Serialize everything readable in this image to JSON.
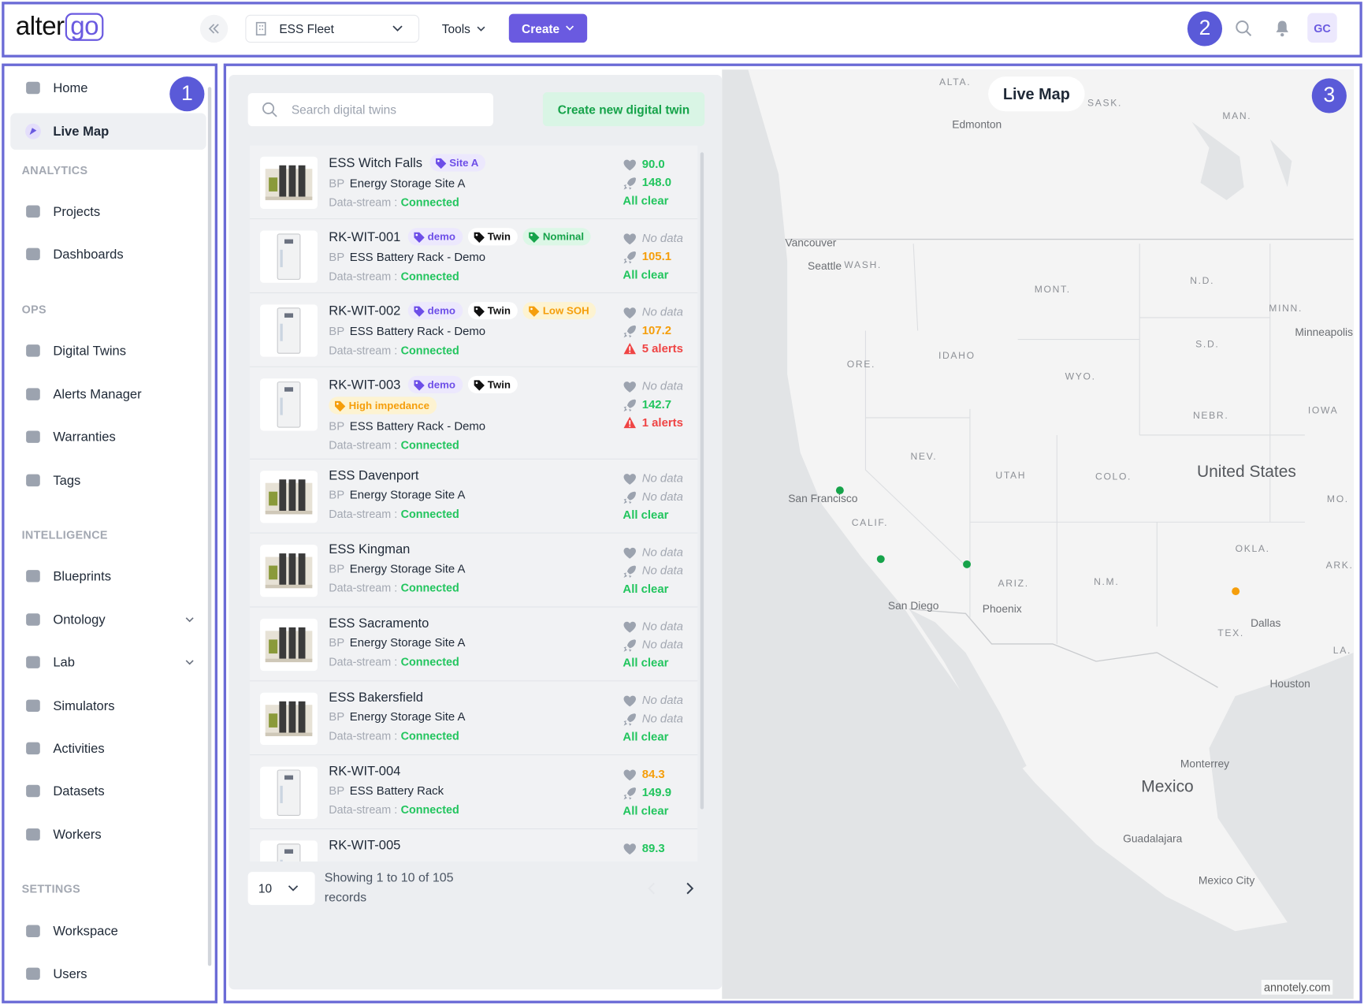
{
  "header": {
    "logo": {
      "text": "alter",
      "accent": "go"
    },
    "badge": "2",
    "fleet_selector": "ESS Fleet",
    "tools": "Tools",
    "create": "Create",
    "avatar": "GC"
  },
  "sidebar": {
    "badge": "1",
    "sections": [
      {
        "items": [
          {
            "label": "Home"
          },
          {
            "label": "Live Map",
            "active": true
          }
        ]
      },
      {
        "title": "ANALYTICS",
        "items": [
          {
            "label": "Projects"
          },
          {
            "label": "Dashboards"
          }
        ]
      },
      {
        "title": "OPS",
        "items": [
          {
            "label": "Digital Twins"
          },
          {
            "label": "Alerts Manager"
          },
          {
            "label": "Warranties"
          },
          {
            "label": "Tags"
          }
        ]
      },
      {
        "title": "INTELLIGENCE",
        "items": [
          {
            "label": "Blueprints"
          },
          {
            "label": "Ontology",
            "submenu": true
          },
          {
            "label": "Lab",
            "submenu": true
          },
          {
            "label": "Simulators"
          },
          {
            "label": "Activities"
          },
          {
            "label": "Datasets"
          },
          {
            "label": "Workers"
          }
        ]
      },
      {
        "title": "SETTINGS",
        "items": [
          {
            "label": "Workspace"
          },
          {
            "label": "Users"
          }
        ]
      }
    ]
  },
  "main": {
    "badge": "3",
    "map_title": "Live Map",
    "search_placeholder": "Search digital twins",
    "create_button": "Create new digital twin",
    "stream_label": "Data-stream :",
    "twins": [
      {
        "name": "ESS Witch Falls",
        "image": "site",
        "tags": [
          {
            "label": "Site A",
            "tone": "purple"
          }
        ],
        "kind": "BP",
        "site": "Energy Storage Site A",
        "stream": "Connected",
        "health": {
          "text": "90.0",
          "tone": "ok"
        },
        "power": {
          "text": "148.0",
          "tone": "ok"
        },
        "status": {
          "text": "All clear",
          "tone": "ok"
        }
      },
      {
        "name": "RK-WIT-001",
        "image": "rack",
        "tags": [
          {
            "label": "demo",
            "tone": "purple"
          },
          {
            "label": "Twin",
            "tone": "dark"
          },
          {
            "label": "Nominal",
            "tone": "green"
          }
        ],
        "kind": "BP",
        "site": "ESS Battery Rack - Demo",
        "stream": "Connected",
        "health": {
          "text": "No data",
          "tone": "none"
        },
        "power": {
          "text": "105.1",
          "tone": "warn"
        },
        "status": {
          "text": "All clear",
          "tone": "ok"
        }
      },
      {
        "name": "RK-WIT-002",
        "image": "rack",
        "tags": [
          {
            "label": "demo",
            "tone": "purple"
          },
          {
            "label": "Twin",
            "tone": "dark"
          },
          {
            "label": "Low SOH",
            "tone": "orange"
          }
        ],
        "kind": "BP",
        "site": "ESS Battery Rack - Demo",
        "stream": "Connected",
        "health": {
          "text": "No data",
          "tone": "none"
        },
        "power": {
          "text": "107.2",
          "tone": "warn"
        },
        "status": {
          "text": "5 alerts",
          "tone": "alert"
        }
      },
      {
        "name": "RK-WIT-003",
        "image": "rack",
        "tags": [
          {
            "label": "demo",
            "tone": "purple"
          },
          {
            "label": "Twin",
            "tone": "dark"
          },
          {
            "label": "High impedance",
            "tone": "orange"
          }
        ],
        "kind": "BP",
        "site": "ESS Battery Rack - Demo",
        "stream": "Connected",
        "health": {
          "text": "No data",
          "tone": "none"
        },
        "power": {
          "text": "142.7",
          "tone": "ok"
        },
        "status": {
          "text": "1 alerts",
          "tone": "alert"
        }
      },
      {
        "name": "ESS Davenport",
        "image": "site",
        "tags": [],
        "kind": "BP",
        "site": "Energy Storage Site A",
        "stream": "Connected",
        "health": {
          "text": "No data",
          "tone": "none"
        },
        "power": {
          "text": "No data",
          "tone": "none"
        },
        "status": {
          "text": "All clear",
          "tone": "ok"
        }
      },
      {
        "name": "ESS Kingman",
        "image": "site",
        "tags": [],
        "kind": "BP",
        "site": "Energy Storage Site A",
        "stream": "Connected",
        "health": {
          "text": "No data",
          "tone": "none"
        },
        "power": {
          "text": "No data",
          "tone": "none"
        },
        "status": {
          "text": "All clear",
          "tone": "ok"
        }
      },
      {
        "name": "ESS Sacramento",
        "image": "site",
        "tags": [],
        "kind": "BP",
        "site": "Energy Storage Site A",
        "stream": "Connected",
        "health": {
          "text": "No data",
          "tone": "none"
        },
        "power": {
          "text": "No data",
          "tone": "none"
        },
        "status": {
          "text": "All clear",
          "tone": "ok"
        }
      },
      {
        "name": "ESS Bakersfield",
        "image": "site",
        "tags": [],
        "kind": "BP",
        "site": "Energy Storage Site A",
        "stream": "Connected",
        "health": {
          "text": "No data",
          "tone": "none"
        },
        "power": {
          "text": "No data",
          "tone": "none"
        },
        "status": {
          "text": "All clear",
          "tone": "ok"
        }
      },
      {
        "name": "RK-WIT-004",
        "image": "rack",
        "tags": [],
        "kind": "BP",
        "site": "ESS Battery Rack",
        "stream": "Connected",
        "health": {
          "text": "84.3",
          "tone": "warn"
        },
        "power": {
          "text": "149.9",
          "tone": "ok"
        },
        "status": {
          "text": "All clear",
          "tone": "ok"
        }
      },
      {
        "name": "RK-WIT-005",
        "image": "rack",
        "tags": [],
        "health": {
          "text": "89.3",
          "tone": "ok"
        }
      }
    ],
    "pagination": {
      "page_size": "10",
      "summary": "Showing 1 to 10 of 105 records"
    },
    "map": {
      "labels": [
        {
          "text": "ALTA.",
          "kind": "state"
        },
        {
          "text": "SASK.",
          "kind": "state"
        },
        {
          "text": "MAN.",
          "kind": "state"
        },
        {
          "text": "Edmonton",
          "kind": "city"
        },
        {
          "text": "Vancouver",
          "kind": "city"
        },
        {
          "text": "Seattle",
          "kind": "city"
        },
        {
          "text": "WASH.",
          "kind": "state"
        },
        {
          "text": "MONT.",
          "kind": "state"
        },
        {
          "text": "N.D.",
          "kind": "state"
        },
        {
          "text": "MINN.",
          "kind": "state"
        },
        {
          "text": "Minneapolis",
          "kind": "city"
        },
        {
          "text": "S.D.",
          "kind": "state"
        },
        {
          "text": "IDAHO",
          "kind": "state"
        },
        {
          "text": "ORE.",
          "kind": "state"
        },
        {
          "text": "WYO.",
          "kind": "state"
        },
        {
          "text": "NEBR.",
          "kind": "state"
        },
        {
          "text": "IOWA",
          "kind": "state"
        },
        {
          "text": "NEV.",
          "kind": "state"
        },
        {
          "text": "UTAH",
          "kind": "state"
        },
        {
          "text": "COLO.",
          "kind": "state"
        },
        {
          "text": "United States",
          "kind": "country"
        },
        {
          "text": "San Francisco",
          "kind": "city"
        },
        {
          "text": "MO.",
          "kind": "state"
        },
        {
          "text": "CALIF.",
          "kind": "state"
        },
        {
          "text": "OKLA.",
          "kind": "state"
        },
        {
          "text": "ARK.",
          "kind": "state"
        },
        {
          "text": "ARIZ.",
          "kind": "state"
        },
        {
          "text": "N.M.",
          "kind": "state"
        },
        {
          "text": "San Diego",
          "kind": "city"
        },
        {
          "text": "Phoenix",
          "kind": "city"
        },
        {
          "text": "Dallas",
          "kind": "city"
        },
        {
          "text": "TEX.",
          "kind": "state"
        },
        {
          "text": "LA.",
          "kind": "state"
        },
        {
          "text": "Houston",
          "kind": "city"
        },
        {
          "text": "Monterrey",
          "kind": "city"
        },
        {
          "text": "Mexico",
          "kind": "country"
        },
        {
          "text": "Guadalajara",
          "kind": "city"
        },
        {
          "text": "Mexico City",
          "kind": "city"
        }
      ],
      "attribution": "annotely.com"
    }
  }
}
